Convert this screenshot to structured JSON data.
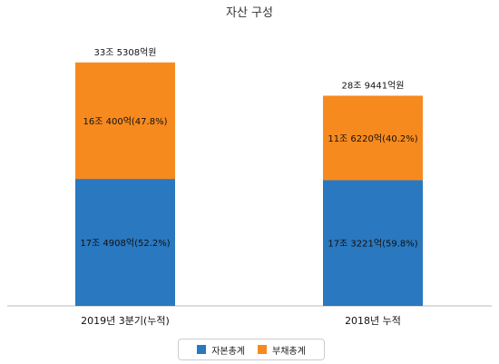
{
  "chart_data": {
    "type": "bar",
    "stacked": true,
    "title": "자산 구성",
    "categories": [
      "2019년 3분기(누적)",
      "2018년 누적"
    ],
    "totals": [
      "33조 5308억원",
      "28조 9441억원"
    ],
    "total_values": [
      335308,
      289441
    ],
    "series": [
      {
        "name": "자본총계",
        "color": "#2a78bf",
        "values": [
          174908,
          173221
        ],
        "labels": [
          "17조 4908억(52.2%)",
          "17조 3221억(59.8%)"
        ]
      },
      {
        "name": "부채총계",
        "color": "#f78a1e",
        "values": [
          160400,
          116220
        ],
        "labels": [
          "16조 400억(47.8%)",
          "11조 6220억(40.2%)"
        ]
      }
    ],
    "ylim": [
      0,
      360000
    ],
    "grid": false,
    "legend_position": "bottom"
  }
}
